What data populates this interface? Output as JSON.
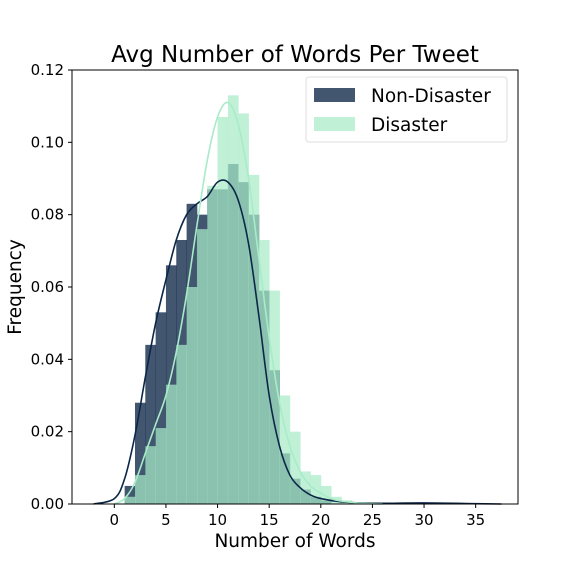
{
  "chart_data": {
    "type": "bar",
    "title": "Avg Number of Words Per Tweet",
    "xlabel": "Number of Words",
    "ylabel": "Frequency",
    "xlim": [
      -4.1,
      39.1
    ],
    "ylim": [
      0,
      0.12
    ],
    "xticks": [
      0,
      5,
      10,
      15,
      20,
      25,
      30,
      35
    ],
    "yticks": [
      0.0,
      0.02,
      0.04,
      0.06,
      0.08,
      0.1,
      0.12
    ],
    "ytick_labels": [
      "0.00",
      "0.02",
      "0.04",
      "0.06",
      "0.08",
      "0.10",
      "0.12"
    ],
    "grid": false,
    "legend_position": "top-right",
    "series": [
      {
        "name": "Non-Disaster",
        "kind": "histogram",
        "color": "#0d2748",
        "opacity": 0.78,
        "bins": [
          [
            1,
            2,
            0.005
          ],
          [
            2,
            3,
            0.028
          ],
          [
            3,
            4,
            0.044
          ],
          [
            4,
            5,
            0.053
          ],
          [
            5,
            6,
            0.066
          ],
          [
            6,
            7,
            0.073
          ],
          [
            7,
            8,
            0.083
          ],
          [
            8,
            9,
            0.08
          ],
          [
            9,
            10,
            0.087
          ],
          [
            10,
            11,
            0.087
          ],
          [
            11,
            12,
            0.094
          ],
          [
            12,
            13,
            0.089
          ],
          [
            13,
            14,
            0.08
          ],
          [
            14,
            15,
            0.059
          ],
          [
            15,
            16,
            0.037
          ],
          [
            16,
            17,
            0.014
          ],
          [
            17,
            18,
            0.007
          ],
          [
            18,
            19,
            0.004
          ],
          [
            19,
            20,
            0.002
          ],
          [
            20,
            21,
            0.001
          ]
        ],
        "kde": {
          "color": "#0d2748",
          "x": [
            -2,
            0,
            1,
            2,
            3,
            4,
            5,
            6,
            7,
            8,
            9,
            10,
            11,
            12,
            13,
            14,
            15,
            16,
            17,
            18,
            19,
            20,
            22,
            25,
            30,
            35,
            37.5
          ],
          "y": [
            0,
            0.0015,
            0.007,
            0.019,
            0.035,
            0.05,
            0.062,
            0.073,
            0.08,
            0.083,
            0.085,
            0.089,
            0.089,
            0.084,
            0.072,
            0.052,
            0.03,
            0.016,
            0.008,
            0.0045,
            0.0025,
            0.0015,
            0.0006,
            0.0002,
            0.0003,
            0.0001,
            0
          ]
        }
      },
      {
        "name": "Disaster",
        "kind": "histogram",
        "color": "#a8ebc8",
        "opacity": 0.72,
        "bins": [
          [
            1,
            2,
            0.002
          ],
          [
            2,
            3,
            0.008
          ],
          [
            3,
            4,
            0.016
          ],
          [
            4,
            5,
            0.021
          ],
          [
            5,
            6,
            0.033
          ],
          [
            6,
            7,
            0.044
          ],
          [
            7,
            8,
            0.06
          ],
          [
            8,
            9,
            0.076
          ],
          [
            9,
            10,
            0.088
          ],
          [
            10,
            11,
            0.107
          ],
          [
            11,
            12,
            0.113
          ],
          [
            12,
            13,
            0.108
          ],
          [
            13,
            14,
            0.091
          ],
          [
            14,
            15,
            0.073
          ],
          [
            15,
            16,
            0.059
          ],
          [
            16,
            17,
            0.03
          ],
          [
            17,
            18,
            0.02
          ],
          [
            18,
            19,
            0.009
          ],
          [
            19,
            20,
            0.008
          ],
          [
            20,
            21,
            0.005
          ],
          [
            21,
            22,
            0.002
          ],
          [
            22,
            23,
            0.001
          ]
        ],
        "kde": {
          "color": "#a8ebc8",
          "x": [
            0,
            1,
            2,
            3,
            4,
            5,
            6,
            7,
            8,
            9,
            10,
            11,
            12,
            13,
            14,
            15,
            16,
            17,
            18,
            19,
            20,
            21,
            22,
            24,
            26
          ],
          "y": [
            0,
            0.0015,
            0.006,
            0.014,
            0.022,
            0.03,
            0.042,
            0.058,
            0.077,
            0.095,
            0.107,
            0.111,
            0.105,
            0.09,
            0.068,
            0.046,
            0.028,
            0.016,
            0.009,
            0.005,
            0.003,
            0.0015,
            0.0008,
            0.0002,
            0
          ]
        }
      }
    ]
  }
}
